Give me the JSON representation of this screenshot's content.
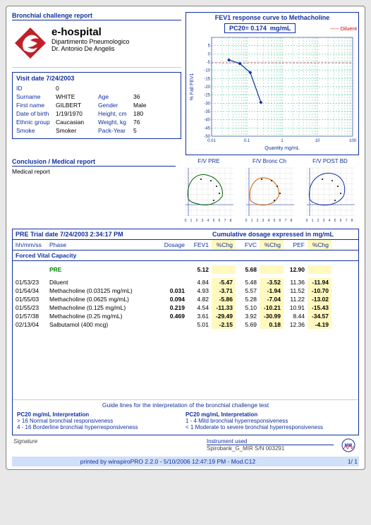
{
  "titles": {
    "report": "Bronchial challenge report",
    "curve": "FEV1 response curve to Methacholine",
    "conclusion": "Conclusion / Medical report",
    "conclusion_body": "Medical report"
  },
  "hospital": {
    "name": "e-hospital",
    "dept": "Dipartimento Pneumologico",
    "doctor": "Dr. Antonio De Angelis",
    "logo_bg": "#c0202a",
    "logo_fg": "#ffffff"
  },
  "visit": {
    "header_label": "Visit date",
    "date": "7/24/2003",
    "fields": {
      "id_lbl": "ID",
      "id": "0",
      "surname_lbl": "Surname",
      "surname": "WHITE",
      "first_lbl": "First name",
      "first": "GILBERT",
      "dob_lbl": "Date of birth",
      "dob": "1/19/1970",
      "eth_lbl": "Ethnic group",
      "eth": "Caucasian",
      "smoke_lbl": "Smoke",
      "smoke": "Smoker",
      "age_lbl": "Age",
      "age": "36",
      "gender_lbl": "Gender",
      "gender": "Male",
      "height_lbl": "Height, cm",
      "height": "180",
      "weight_lbl": "Weight, kg",
      "weight": "76",
      "pack_lbl": "Pack-Year",
      "pack": "5"
    }
  },
  "pc20": {
    "label_prefix": "PC20=",
    "value": "0.174",
    "unit": "mg/mL",
    "legend": "Diluent"
  },
  "main_chart": {
    "type": "line",
    "xlabel": "Quantity mg/mL",
    "ylabel": "% Fall FEV1",
    "xscale": "log",
    "xticks": [
      0.01,
      0.1,
      1,
      10,
      100
    ],
    "xticklabels": [
      "0.01",
      "0.1",
      "1",
      "10",
      "100"
    ],
    "ylim": [
      -50,
      10
    ],
    "ytick_step": 5,
    "yticks": [
      5,
      0,
      -5,
      -10,
      -15,
      -20,
      -25,
      -30,
      -35,
      -40,
      -45,
      -50
    ],
    "series_color": "#1030a0",
    "marker": "diamond",
    "marker_size": 5,
    "line_width": 1.2,
    "grid_color_y": "#00a060",
    "grid_color_x": "#00a060",
    "grid_dash": "2,2",
    "pc20_line_color": "#d01040",
    "background_color": "#ffffff",
    "points": [
      {
        "x": 0.031,
        "y": -3.71
      },
      {
        "x": 0.063,
        "y": -5.86
      },
      {
        "x": 0.125,
        "y": -11.33
      },
      {
        "x": 0.25,
        "y": -29.49
      }
    ]
  },
  "fv": {
    "titles": [
      "F/V PRE",
      "F/V Bronc Ch",
      "F/V POST BD"
    ],
    "colors": [
      "#006000",
      "#d06000",
      "#1030a0"
    ],
    "xlim": [
      -1,
      8
    ],
    "ylim": [
      -4,
      14
    ],
    "width": 82,
    "height": 82
  },
  "trial": {
    "header_left_label": "PRE Trial date",
    "header_left_value": "7/24/2003  2:34:17 PM",
    "header_right": "Cumulative dosage expressed in mg/mL",
    "cols": [
      "hh/mm/ss",
      "Phase",
      "Dosage",
      "FEV1",
      "%Chg",
      "FVC",
      "%Chg",
      "PEF",
      "%Chg"
    ],
    "fvc_header": "Forced Vital Capacity",
    "pre_label": "PRE",
    "pre": {
      "fev1": "5.12",
      "fvc": "5.68",
      "pef": "12.90"
    },
    "rows": [
      {
        "t": "01/53/23",
        "phase": "Diluent",
        "dos": "",
        "fev1": "4.84",
        "c1": "-5.47",
        "fvc": "5.48",
        "c2": "-3.52",
        "pef": "11.36",
        "c3": "-11.94"
      },
      {
        "t": "01/54/34",
        "phase": "Methacholine (0.03125 mg/mL)",
        "dos": "0.031",
        "fev1": "4.93",
        "c1": "-3.71",
        "fvc": "5.57",
        "c2": "-1.94",
        "pef": "11.52",
        "c3": "-10.70"
      },
      {
        "t": "01/55/03",
        "phase": "Methacholine (0.0625 mg/mL)",
        "dos": "0.094",
        "fev1": "4.82",
        "c1": "-5.86",
        "fvc": "5.28",
        "c2": "-7.04",
        "pef": "11.22",
        "c3": "-13.02"
      },
      {
        "t": "01/55/23",
        "phase": "Methacholine (0.125 mg/mL)",
        "dos": "0.219",
        "fev1": "4.54",
        "c1": "-11.33",
        "fvc": "5.10",
        "c2": "-10.21",
        "pef": "10.91",
        "c3": "-15.43"
      },
      {
        "t": "01/57/38",
        "phase": "Methacholine (0.25 mg/mL)",
        "dos": "0.469",
        "fev1": "3.61",
        "c1": "-29.49",
        "fvc": "3.92",
        "c2": "-30.99",
        "pef": "8.44",
        "c3": "-34.57"
      },
      {
        "t": "02/13/04",
        "phase": "Salbutamol (400 mcg)",
        "dos": "",
        "fev1": "5.01",
        "c1": "-2.15",
        "fvc": "5.69",
        "c2": "0.18",
        "pef": "12.36",
        "c3": "-4.19"
      }
    ]
  },
  "guide": {
    "title": "Guide lines for the interpretation of the bronchial challenge test",
    "left_header": "PC20 mg/mL  Interpretation",
    "right_header": "PC20 mg/mL  Interpretation",
    "left": [
      "> 16  Normal bronchial responsiveness",
      "4 - 16  Borderline bronchial hyperresponsiveness"
    ],
    "right": [
      "1 - 4  Mild bronchial hyperresponsiveness",
      "< 1  Moderate to severe bronchial hyperresponsiveness"
    ]
  },
  "sig": {
    "label": "Signature",
    "instr_label": "Instrument used",
    "instr": "Spirobank_G_MIR S/N 003291"
  },
  "footer": {
    "text": "printed by winspiroPRO 2.2.0 - 5/10/2006 12:47:19 PM - Mod.C12",
    "page": "1/    1"
  },
  "colors": {
    "primary": "#1030a0",
    "highlight_bg": "#fff9c0"
  }
}
